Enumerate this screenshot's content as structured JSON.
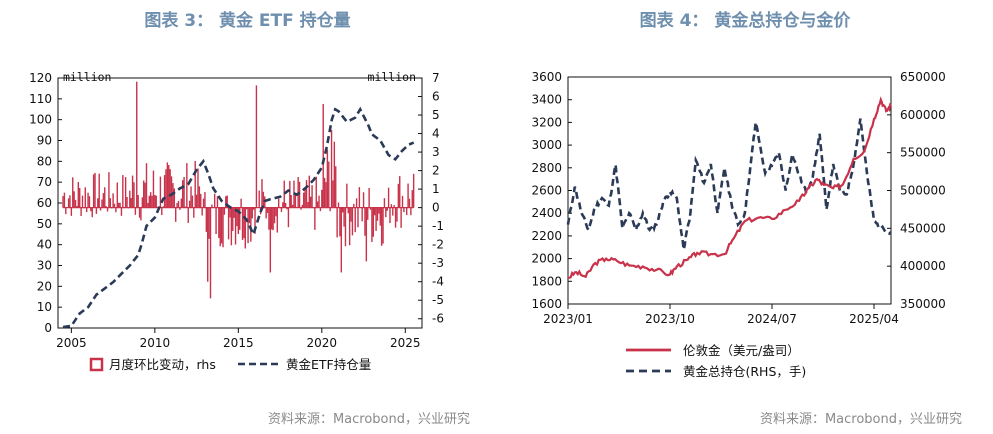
{
  "figure3": {
    "title": "图表 3： 黄金 ETF 持仓量",
    "source": "资料来源：Macrobond，兴业研究",
    "left_unit": "million",
    "right_unit": "million",
    "legend": {
      "bars": "月度环比变动，rhs",
      "line": "黄金ETF持仓量"
    }
  },
  "figure4": {
    "title": "图表 4： 黄金总持仓与金价",
    "source": "资料来源：Macrobond，兴业研究",
    "legend": {
      "price": "伦敦金（美元/盎司）",
      "holdings": "黄金总持仓(RHS，手)"
    }
  },
  "chart_data": [
    {
      "type": "bar+line",
      "title": "黄金 ETF 持仓量",
      "x_range": [
        2004.2,
        2026.0
      ],
      "x_ticks": [
        2005,
        2010,
        2015,
        2020,
        2025
      ],
      "left_axis": {
        "label": "million",
        "range": [
          0,
          120
        ],
        "ticks": [
          0,
          10,
          20,
          30,
          40,
          50,
          60,
          70,
          80,
          90,
          100,
          110,
          120
        ]
      },
      "right_axis": {
        "label": "million",
        "range": [
          -6.5,
          7
        ],
        "ticks": [
          -6,
          -5,
          -4,
          -3,
          -2,
          -1,
          0,
          1,
          2,
          3,
          4,
          5,
          6,
          7
        ]
      },
      "series": [
        {
          "name": "黄金ETF持仓量",
          "axis": "left",
          "style": "dashed",
          "color": "#2b3b57",
          "points": [
            [
              2004.5,
              0.5
            ],
            [
              2005,
              1
            ],
            [
              2005.5,
              7
            ],
            [
              2006,
              10
            ],
            [
              2006.5,
              16
            ],
            [
              2007,
              19
            ],
            [
              2007.5,
              22
            ],
            [
              2008,
              26
            ],
            [
              2008.5,
              30
            ],
            [
              2009,
              35
            ],
            [
              2009.2,
              40
            ],
            [
              2009.5,
              49
            ],
            [
              2010,
              53
            ],
            [
              2010.5,
              62
            ],
            [
              2011,
              64
            ],
            [
              2011.5,
              67
            ],
            [
              2012,
              69
            ],
            [
              2012.5,
              76
            ],
            [
              2012.9,
              80
            ],
            [
              2013.2,
              74
            ],
            [
              2013.5,
              67
            ],
            [
              2014,
              61
            ],
            [
              2014.5,
              58
            ],
            [
              2015,
              56
            ],
            [
              2015.5,
              52
            ],
            [
              2015.9,
              45
            ],
            [
              2016.3,
              55
            ],
            [
              2016.6,
              61
            ],
            [
              2017,
              62
            ],
            [
              2017.5,
              63
            ],
            [
              2018,
              66
            ],
            [
              2018.5,
              64
            ],
            [
              2019,
              67
            ],
            [
              2019.5,
              71
            ],
            [
              2020,
              77
            ],
            [
              2020.3,
              87
            ],
            [
              2020.6,
              100
            ],
            [
              2020.8,
              105
            ],
            [
              2021,
              104
            ],
            [
              2021.5,
              99
            ],
            [
              2022,
              101
            ],
            [
              2022.3,
              105
            ],
            [
              2022.8,
              97
            ],
            [
              2023,
              93
            ],
            [
              2023.5,
              90
            ],
            [
              2024,
              83
            ],
            [
              2024.4,
              81
            ],
            [
              2024.8,
              85
            ],
            [
              2025.2,
              88
            ],
            [
              2025.5,
              89
            ]
          ]
        },
        {
          "name": "月度环比变动，rhs",
          "axis": "right",
          "type": "bar",
          "color": "#c8324a",
          "start": 2004.5,
          "end": 2025.5,
          "notable": [
            [
              2008.9,
              6.8
            ],
            [
              2013.3,
              -4.9
            ],
            [
              2013.2,
              -4.0
            ],
            [
              2016.1,
              6.6
            ],
            [
              2020.1,
              5.6
            ],
            [
              2020.6,
              4.2
            ],
            [
              2016.9,
              -3.5
            ],
            [
              2021.2,
              -3.5
            ],
            [
              2022.7,
              -2.9
            ]
          ]
        }
      ]
    },
    {
      "type": "line",
      "title": "黄金总持仓与金价",
      "x_range": [
        2023.0,
        2025.375
      ],
      "x_ticks": [
        "2023/01",
        "2023/10",
        "2024/07",
        "2025/04"
      ],
      "left_axis": {
        "range": [
          1600,
          3600
        ],
        "ticks": [
          1600,
          1800,
          2000,
          2200,
          2400,
          2600,
          2800,
          3000,
          3200,
          3400,
          3600
        ]
      },
      "right_axis": {
        "range": [
          350000,
          650000
        ],
        "ticks": [
          350000,
          400000,
          450000,
          500000,
          550000,
          600000,
          650000
        ]
      },
      "series": [
        {
          "name": "伦敦金（美元/盎司）",
          "axis": "left",
          "color": "#c8324a",
          "points": [
            [
              2023.0,
              1830
            ],
            [
              2023.06,
              1880
            ],
            [
              2023.13,
              1840
            ],
            [
              2023.2,
              1960
            ],
            [
              2023.28,
              2000
            ],
            [
              2023.36,
              1980
            ],
            [
              2023.45,
              1940
            ],
            [
              2023.55,
              1930
            ],
            [
              2023.65,
              1900
            ],
            [
              2023.75,
              1860
            ],
            [
              2023.8,
              1930
            ],
            [
              2023.88,
              1990
            ],
            [
              2023.95,
              2050
            ],
            [
              2024.05,
              2040
            ],
            [
              2024.15,
              2040
            ],
            [
              2024.22,
              2180
            ],
            [
              2024.3,
              2330
            ],
            [
              2024.4,
              2360
            ],
            [
              2024.5,
              2350
            ],
            [
              2024.6,
              2430
            ],
            [
              2024.7,
              2510
            ],
            [
              2024.77,
              2620
            ],
            [
              2024.83,
              2700
            ],
            [
              2024.88,
              2650
            ],
            [
              2024.95,
              2620
            ],
            [
              2025.02,
              2650
            ],
            [
              2025.1,
              2880
            ],
            [
              2025.18,
              2950
            ],
            [
              2025.25,
              3230
            ],
            [
              2025.3,
              3400
            ],
            [
              2025.34,
              3300
            ],
            [
              2025.375,
              3350
            ]
          ]
        },
        {
          "name": "黄金总持仓(RHS，手)",
          "axis": "right",
          "color": "#2b3b57",
          "style": "dashed",
          "points": [
            [
              2023.0,
              455000
            ],
            [
              2023.05,
              505000
            ],
            [
              2023.1,
              470000
            ],
            [
              2023.15,
              448000
            ],
            [
              2023.2,
              478000
            ],
            [
              2023.25,
              490000
            ],
            [
              2023.3,
              480000
            ],
            [
              2023.35,
              534000
            ],
            [
              2023.4,
              450000
            ],
            [
              2023.45,
              470000
            ],
            [
              2023.5,
              448000
            ],
            [
              2023.55,
              470000
            ],
            [
              2023.6,
              448000
            ],
            [
              2023.65,
              455000
            ],
            [
              2023.7,
              485000
            ],
            [
              2023.75,
              498000
            ],
            [
              2023.8,
              490000
            ],
            [
              2023.85,
              422000
            ],
            [
              2023.9,
              470000
            ],
            [
              2023.94,
              540000
            ],
            [
              2024.0,
              510000
            ],
            [
              2024.05,
              535000
            ],
            [
              2024.1,
              470000
            ],
            [
              2024.15,
              530000
            ],
            [
              2024.2,
              485000
            ],
            [
              2024.25,
              455000
            ],
            [
              2024.3,
              470000
            ],
            [
              2024.35,
              545000
            ],
            [
              2024.38,
              590000
            ],
            [
              2024.45,
              523000
            ],
            [
              2024.5,
              533000
            ],
            [
              2024.55,
              550000
            ],
            [
              2024.6,
              500000
            ],
            [
              2024.65,
              548000
            ],
            [
              2024.7,
              520000
            ],
            [
              2024.75,
              498000
            ],
            [
              2024.8,
              518000
            ],
            [
              2024.85,
              575000
            ],
            [
              2024.9,
              475000
            ],
            [
              2024.95,
              535000
            ],
            [
              2025.0,
              500000
            ],
            [
              2025.05,
              495000
            ],
            [
              2025.1,
              535000
            ],
            [
              2025.15,
              595000
            ],
            [
              2025.2,
              520000
            ],
            [
              2025.25,
              460000
            ],
            [
              2025.3,
              450000
            ],
            [
              2025.375,
              445000
            ]
          ]
        }
      ]
    }
  ]
}
